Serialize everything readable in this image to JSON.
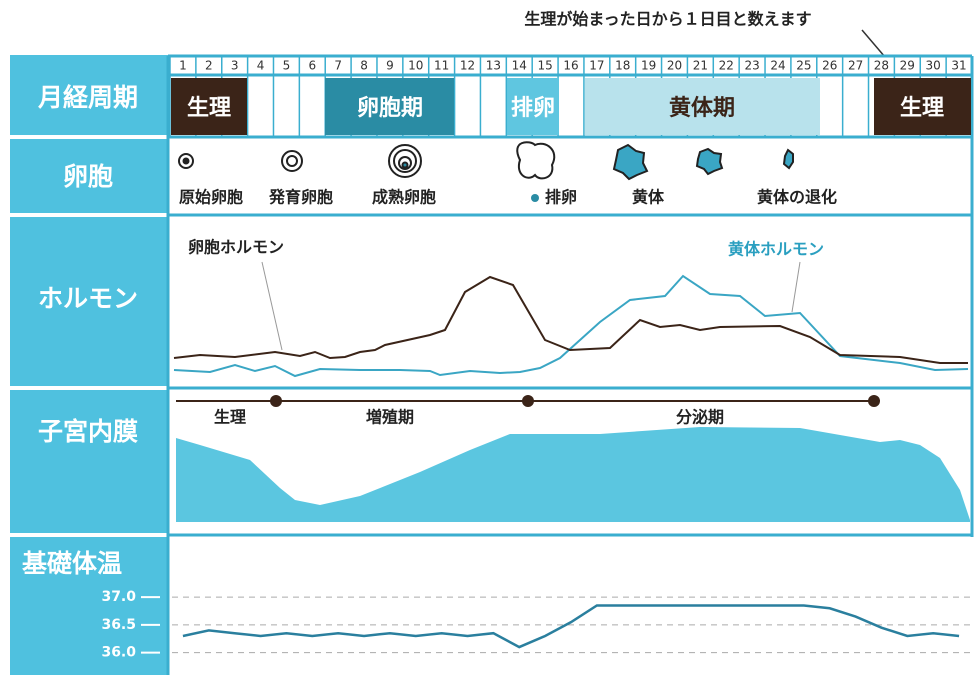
{
  "header_note": "生理が始まった日から１日目と数えます",
  "days": [
    1,
    2,
    3,
    4,
    5,
    6,
    7,
    8,
    9,
    10,
    11,
    12,
    13,
    14,
    15,
    16,
    17,
    18,
    19,
    20,
    21,
    22,
    23,
    24,
    25,
    26,
    27,
    28,
    29,
    30,
    31
  ],
  "rows": {
    "cycle": "月経周期",
    "follicle": "卵胞",
    "hormone": "ホルモン",
    "endometrium": "子宮内膜",
    "temperature": "基礎体温"
  },
  "cycle_phases": {
    "menstruation": "生理",
    "follicular": "卵胞期",
    "ovulation": "排卵",
    "luteal": "黄体期",
    "menstruation_next": "生理"
  },
  "follicle_stages": [
    "原始卵胞",
    "発育卵胞",
    "成熟卵胞",
    "排卵",
    "黄体",
    "黄体の退化"
  ],
  "hormones": {
    "estrogen": "卵胞ホルモン",
    "progesterone": "黄体ホルモン"
  },
  "endometrium_phases": [
    "生理",
    "増殖期",
    "分泌期"
  ],
  "temperature_chart": {
    "type": "line",
    "color": "#2a7f9e",
    "values": [
      36.3,
      36.4,
      36.35,
      36.3,
      36.35,
      36.3,
      36.35,
      36.3,
      36.35,
      36.3,
      36.35,
      36.3,
      36.35,
      36.1,
      36.3,
      36.55,
      36.85,
      36.85,
      36.85,
      36.85,
      36.85,
      36.85,
      36.85,
      36.85,
      36.85,
      36.8,
      36.65,
      36.45,
      36.3,
      36.35,
      36.3
    ],
    "ylim": [
      35.65,
      37.4
    ],
    "yticks": [
      {
        "value": 37.0,
        "label": "37.0"
      },
      {
        "value": 36.5,
        "label": "36.5"
      },
      {
        "value": 36.0,
        "label": "36.0"
      }
    ],
    "grid": true
  }
}
